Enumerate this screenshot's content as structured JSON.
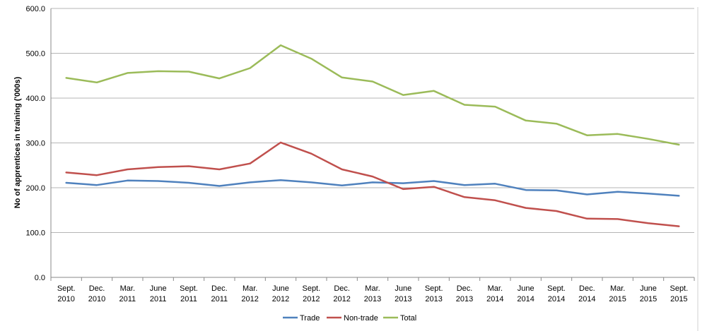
{
  "chart_data": {
    "type": "line",
    "title": "",
    "xlabel": "",
    "ylabel": "No of apprentices in training ('000s)",
    "ylim": [
      0,
      600
    ],
    "yticks": [
      "0.0",
      "100.0",
      "200.0",
      "300.0",
      "400.0",
      "500.0",
      "600.0"
    ],
    "grid": true,
    "legend_position": "bottom",
    "categories": [
      "Sept. 2010",
      "Dec. 2010",
      "Mar. 2011",
      "June 2011",
      "Sept. 2011",
      "Dec. 2011",
      "Mar. 2012",
      "June 2012",
      "Sept. 2012",
      "Dec. 2012",
      "Mar. 2013",
      "June 2013",
      "Sept. 2013",
      "Dec. 2013",
      "Mar. 2014",
      "June 2014",
      "Sept. 2014",
      "Dec. 2014",
      "Mar. 2015",
      "June 2015",
      "Sept. 2015"
    ],
    "category_lines": [
      [
        "Sept.",
        "2010"
      ],
      [
        "Dec.",
        "2010"
      ],
      [
        "Mar.",
        "2011"
      ],
      [
        "June",
        "2011"
      ],
      [
        "Sept.",
        "2011"
      ],
      [
        "Dec.",
        "2011"
      ],
      [
        "Mar.",
        "2012"
      ],
      [
        "June",
        "2012"
      ],
      [
        "Sept.",
        "2012"
      ],
      [
        "Dec.",
        "2012"
      ],
      [
        "Mar.",
        "2013"
      ],
      [
        "June",
        "2013"
      ],
      [
        "Sept.",
        "2013"
      ],
      [
        "Dec.",
        "2013"
      ],
      [
        "Mar.",
        "2014"
      ],
      [
        "June",
        "2014"
      ],
      [
        "Sept.",
        "2014"
      ],
      [
        "Dec.",
        "2014"
      ],
      [
        "Mar.",
        "2015"
      ],
      [
        "June",
        "2015"
      ],
      [
        "Sept.",
        "2015"
      ]
    ],
    "series": [
      {
        "name": "Trade",
        "color": "#4f81bd",
        "values": [
          211,
          206,
          216,
          215,
          211,
          204,
          212,
          217,
          212,
          205,
          212,
          210,
          215,
          206,
          209,
          195,
          194,
          185,
          191,
          187,
          182
        ]
      },
      {
        "name": "Non-trade",
        "color": "#c0504d",
        "values": [
          234,
          228,
          241,
          246,
          248,
          241,
          254,
          301,
          276,
          241,
          225,
          197,
          202,
          179,
          172,
          155,
          148,
          131,
          130,
          121,
          114
        ]
      },
      {
        "name": "Total",
        "color": "#9bbb59",
        "values": [
          445,
          435,
          456,
          460,
          459,
          444,
          467,
          518,
          488,
          446,
          437,
          407,
          416,
          385,
          381,
          350,
          343,
          317,
          320,
          309,
          296
        ]
      }
    ]
  }
}
